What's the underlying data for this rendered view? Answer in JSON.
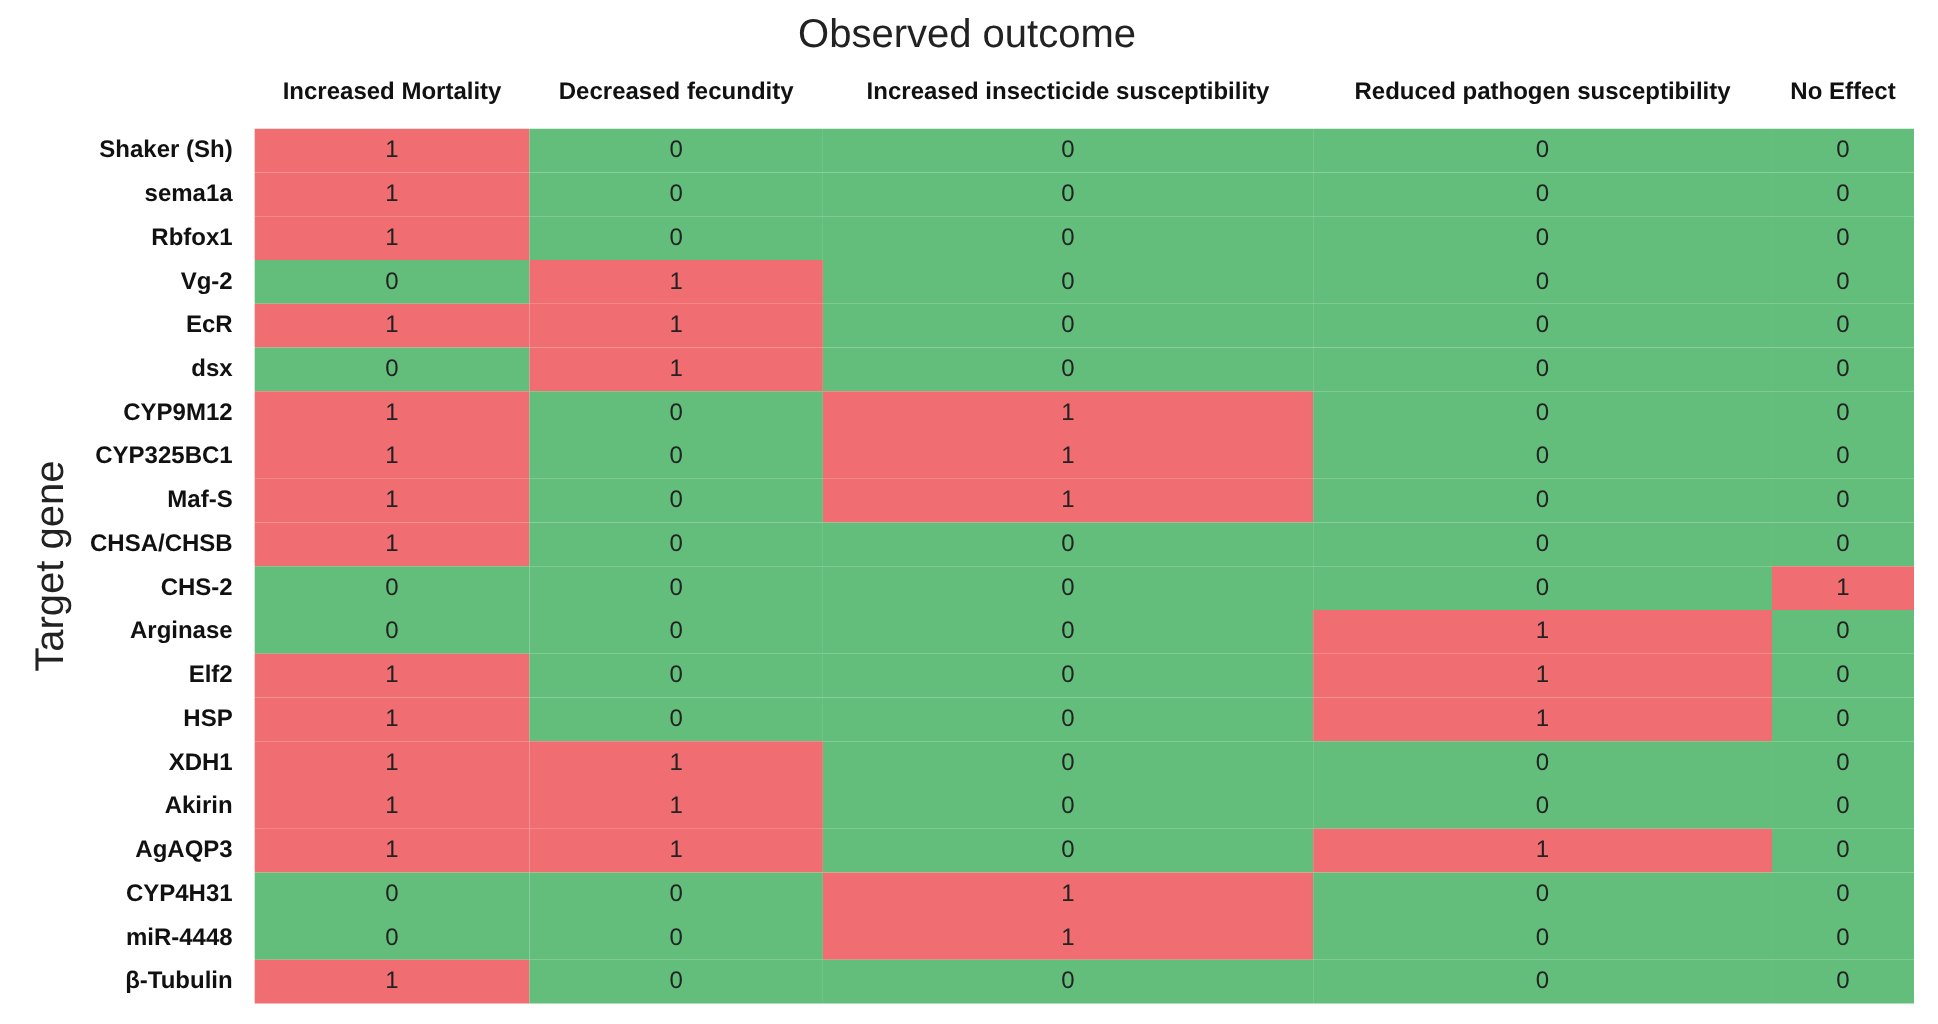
{
  "chart_data": {
    "type": "heatmap",
    "title": "Observed outcome",
    "ylabel": "Target gene",
    "categories": [
      "Increased Mortality",
      "Decreased fecundity",
      "Increased insecticide susceptibility",
      "Reduced pathogen susceptibility",
      "No Effect"
    ],
    "y_categories": [
      "Shaker (Sh)",
      "sema1a",
      "Rbfox1",
      "Vg-2",
      "EcR",
      "dsx",
      "CYP9M12",
      "CYP325BC1",
      "Maf-S",
      "CHSA/CHSB",
      "CHS-2",
      "Arginase",
      "Elf2",
      "HSP",
      "XDH1",
      "Akirin",
      "AgAQP3",
      "CYP4H31",
      "miR-4448",
      "β-Tubulin"
    ],
    "cells": [
      [
        1,
        0,
        0,
        0,
        0
      ],
      [
        1,
        0,
        0,
        0,
        0
      ],
      [
        1,
        0,
        0,
        0,
        0
      ],
      [
        0,
        1,
        0,
        0,
        0
      ],
      [
        1,
        1,
        0,
        0,
        0
      ],
      [
        0,
        1,
        0,
        0,
        0
      ],
      [
        1,
        0,
        1,
        0,
        0
      ],
      [
        1,
        0,
        1,
        0,
        0
      ],
      [
        1,
        0,
        1,
        0,
        0
      ],
      [
        1,
        0,
        0,
        0,
        0
      ],
      [
        0,
        0,
        0,
        0,
        1
      ],
      [
        0,
        0,
        0,
        1,
        0
      ],
      [
        1,
        0,
        0,
        1,
        0
      ],
      [
        1,
        0,
        0,
        1,
        0
      ],
      [
        1,
        1,
        0,
        0,
        0
      ],
      [
        1,
        1,
        0,
        0,
        0
      ],
      [
        1,
        1,
        0,
        1,
        0
      ],
      [
        0,
        0,
        1,
        0,
        0
      ],
      [
        0,
        0,
        1,
        0,
        0
      ],
      [
        1,
        0,
        0,
        0,
        0
      ]
    ],
    "data_labels": true
  }
}
